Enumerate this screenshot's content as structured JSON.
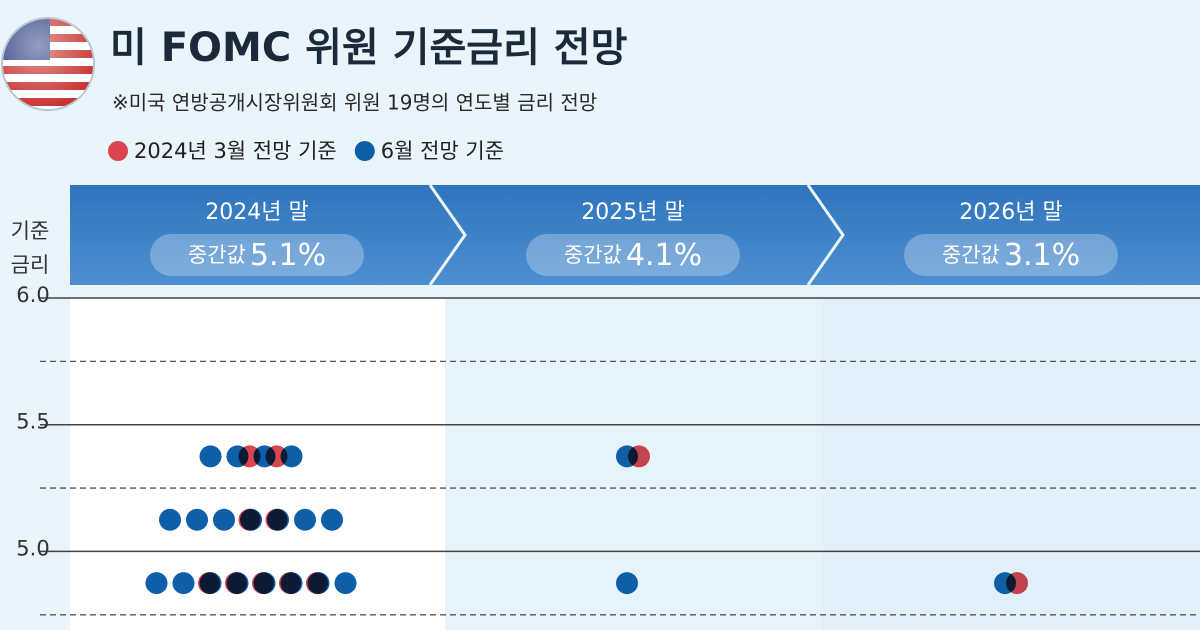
{
  "chart_data": {
    "type": "dot",
    "title": "미 FOMC 위원 기준금리 전망",
    "subtitle": "※미국 연방공개시장위원회 위원 19명의 연도별 금리 전망",
    "y_label_lines": [
      "기준",
      "금리"
    ],
    "periods": [
      {
        "label": "2024년 말",
        "median_label": "중간값",
        "median": "5.1%"
      },
      {
        "label": "2025년 말",
        "median_label": "중간값",
        "median": "4.1%"
      },
      {
        "label": "2026년 말",
        "median_label": "중간값",
        "median": "3.1%"
      }
    ],
    "series": [
      {
        "name": "6월 전망 기준",
        "color": "#0f5fa8",
        "values": [
          [
            5.375,
            5.375,
            5.375,
            5.375,
            5.125,
            5.125,
            5.125,
            5.125,
            5.125,
            5.125,
            5.125,
            4.875,
            4.875,
            4.875,
            4.875,
            4.875,
            4.875,
            4.875,
            4.875
          ],
          [
            5.375,
            4.875
          ],
          [
            4.875
          ]
        ]
      },
      {
        "name": "2024년 3월 전망 기준",
        "color": "#d9464f",
        "values": [
          [
            5.375,
            5.375,
            5.125,
            5.125,
            4.875,
            4.875,
            4.875,
            4.875,
            4.875
          ],
          [
            5.375
          ],
          [
            4.875
          ]
        ]
      }
    ],
    "legend_order": [
      1,
      0
    ],
    "ylim": [
      4.69,
      6.0
    ],
    "yticks": [
      {
        "value": 6.0,
        "label": "6.0"
      },
      {
        "value": 5.5,
        "label": "5.5"
      },
      {
        "value": 5.0,
        "label": "5.0"
      }
    ],
    "minor_yticks": [
      5.75,
      5.25,
      4.75
    ]
  }
}
